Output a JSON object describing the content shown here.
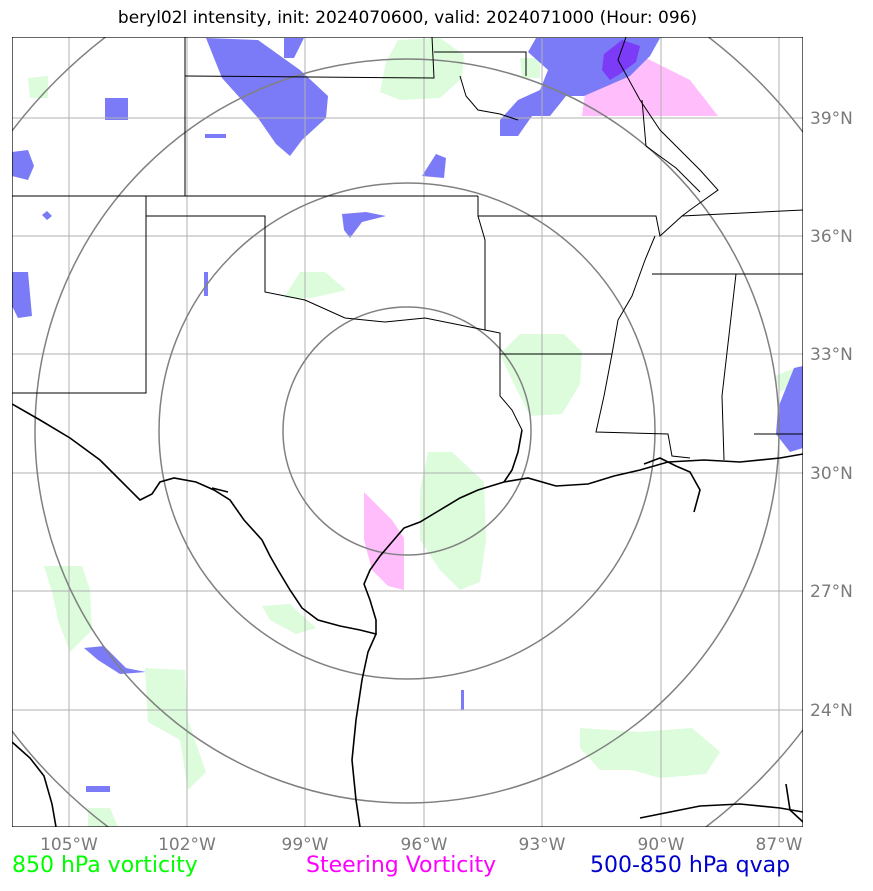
{
  "title": "beryl02l intensity, init: 2024070600, valid: 2024071000 (Hour: 096)",
  "longitude_ticks": [
    "105°W",
    "102°W",
    "99°W",
    "96°W",
    "93°W",
    "90°W",
    "87°W"
  ],
  "latitude_ticks": [
    "39°N",
    "36°N",
    "33°N",
    "30°N",
    "27°N",
    "24°N"
  ],
  "legend": [
    {
      "key": "vort850",
      "label": "850 hPa vorticity",
      "color": "#00ff00"
    },
    {
      "key": "steer",
      "label": "Steering Vorticity",
      "color": "#ff00ff"
    },
    {
      "key": "qvap",
      "label": "500-850 hPa qvap",
      "color": "#0000cc"
    }
  ],
  "colors": {
    "vort850_fill": "#dcfcdc",
    "steer_fill": "#ffbdfb",
    "qvap_fill": "#7b7bf7",
    "qvap_dark": "#7b3bf7",
    "range_rings": "#808080",
    "gridlines": "#b0b0b0",
    "borders": "#000000"
  },
  "range_rings": 4,
  "grid": true
}
